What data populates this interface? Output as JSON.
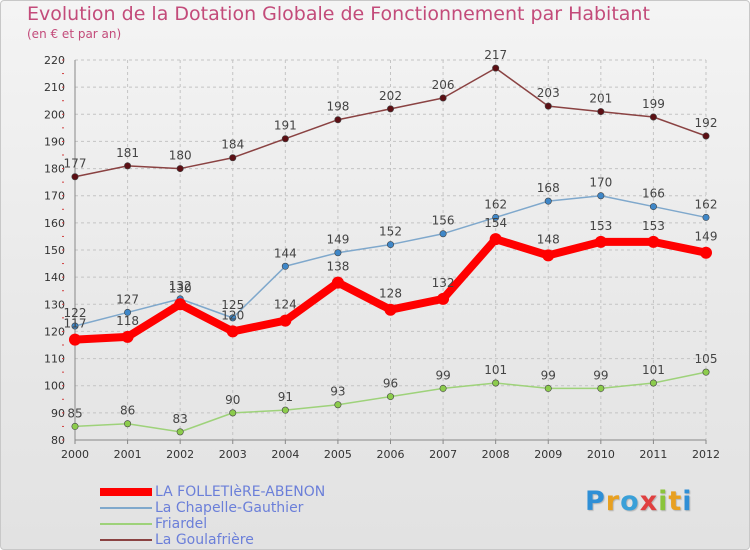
{
  "header": {
    "title": "Evolution de la Dotation Globale de Fonctionnement par Habitant",
    "subtitle": "(en € et par an)"
  },
  "logo": {
    "text": "Proxiti",
    "colors": [
      "#2f8fd6",
      "#e8a020",
      "#3aa0d8",
      "#e04040",
      "#8ac43a",
      "#e8a020",
      "#2f8fd6"
    ]
  },
  "chart_data": {
    "type": "line",
    "x": [
      2000,
      2001,
      2002,
      2003,
      2004,
      2005,
      2006,
      2007,
      2008,
      2009,
      2010,
      2011,
      2012
    ],
    "ylim": [
      80,
      220
    ],
    "yticks": [
      80,
      90,
      100,
      110,
      120,
      130,
      140,
      150,
      160,
      170,
      180,
      190,
      200,
      210,
      220
    ],
    "grid": true,
    "legend_placement": "bottom-left",
    "series": [
      {
        "name": "LA FOLLETIèRE-ABENON",
        "color": "#ff0000",
        "marker": "#ff0000",
        "width": 8,
        "values": [
          117,
          118,
          130,
          120,
          124,
          138,
          128,
          132,
          154,
          148,
          153,
          153,
          149
        ]
      },
      {
        "name": "La Chapelle-Gauthier",
        "color": "#7fa8cc",
        "marker": "#3f87c8",
        "width": 1.5,
        "values": [
          122,
          127,
          132,
          125,
          144,
          149,
          152,
          156,
          162,
          168,
          170,
          166,
          162
        ]
      },
      {
        "name": "Friardel",
        "color": "#9ed27a",
        "marker": "#8ccc4c",
        "width": 1.5,
        "values": [
          85,
          86,
          83,
          90,
          91,
          93,
          96,
          99,
          101,
          99,
          99,
          101,
          105
        ]
      },
      {
        "name": "La Goulafrière",
        "color": "#8a4242",
        "marker": "#5c0f14",
        "width": 1.5,
        "values": [
          177,
          181,
          180,
          184,
          191,
          198,
          202,
          206,
          217,
          203,
          201,
          199,
          192
        ]
      }
    ]
  }
}
